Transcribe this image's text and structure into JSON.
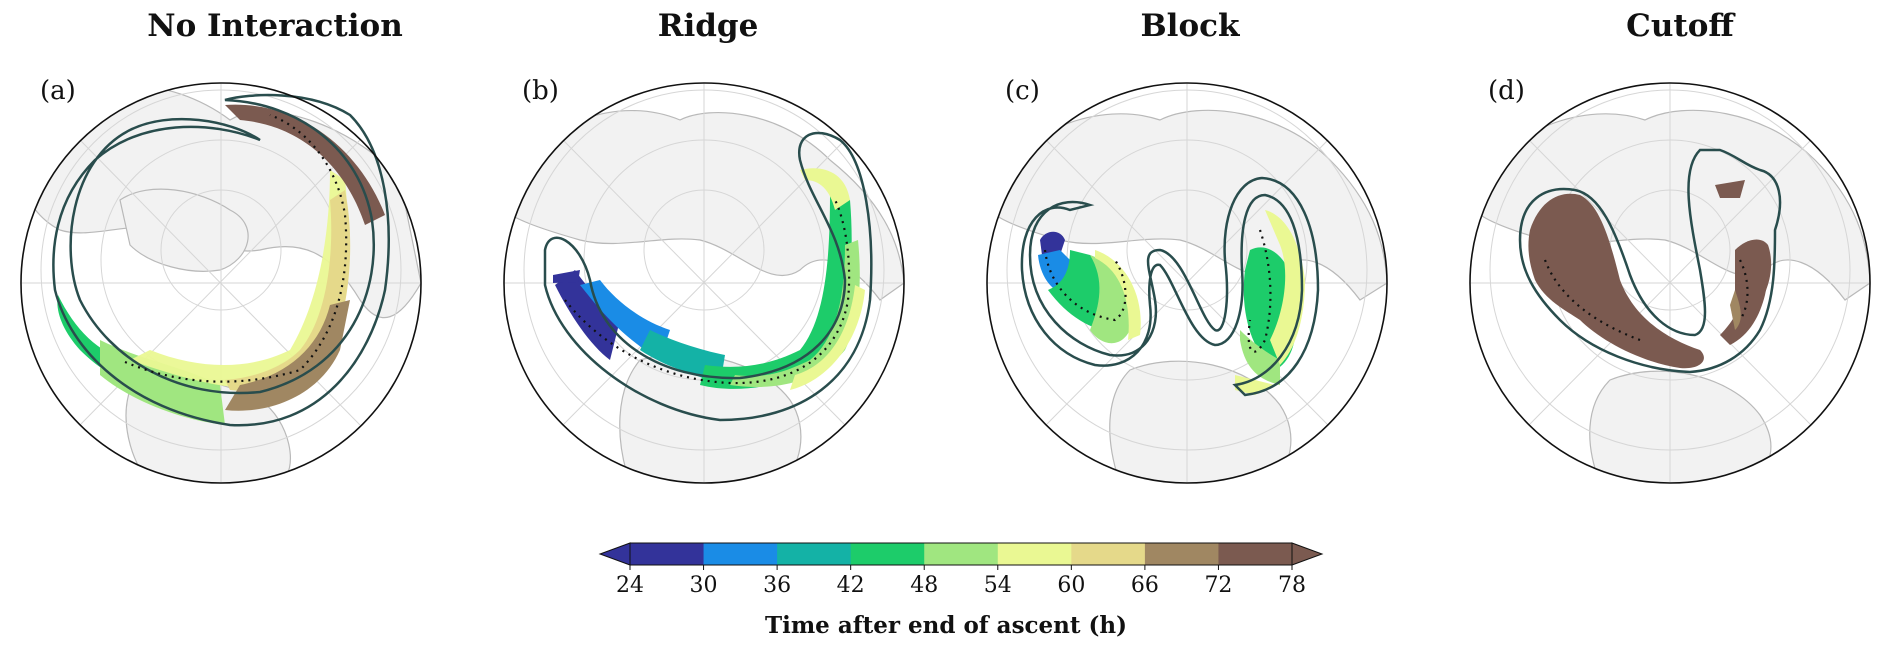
{
  "panels": [
    {
      "title": "No Interaction",
      "letter": "(a)"
    },
    {
      "title": "Ridge",
      "letter": "(b)"
    },
    {
      "title": "Block",
      "letter": "(c)"
    },
    {
      "title": "Cutoff",
      "letter": "(d)"
    }
  ],
  "colorbar": {
    "label": "Time after end of ascent (h)",
    "ticks": [
      "24",
      "30",
      "36",
      "42",
      "48",
      "54",
      "60",
      "66",
      "72",
      "78"
    ],
    "colors": [
      "#33339a",
      "#1a8ce6",
      "#14b2a6",
      "#1dcc6a",
      "#a0e680",
      "#eaf893",
      "#e5d98a",
      "#a08762",
      "#7b5a50"
    ],
    "extend": "both"
  },
  "colors": {
    "land": "#f2f2f2",
    "coast": "#b9b9b9",
    "grid": "#d6d6d6",
    "outline_contour": "#294d4d"
  }
}
